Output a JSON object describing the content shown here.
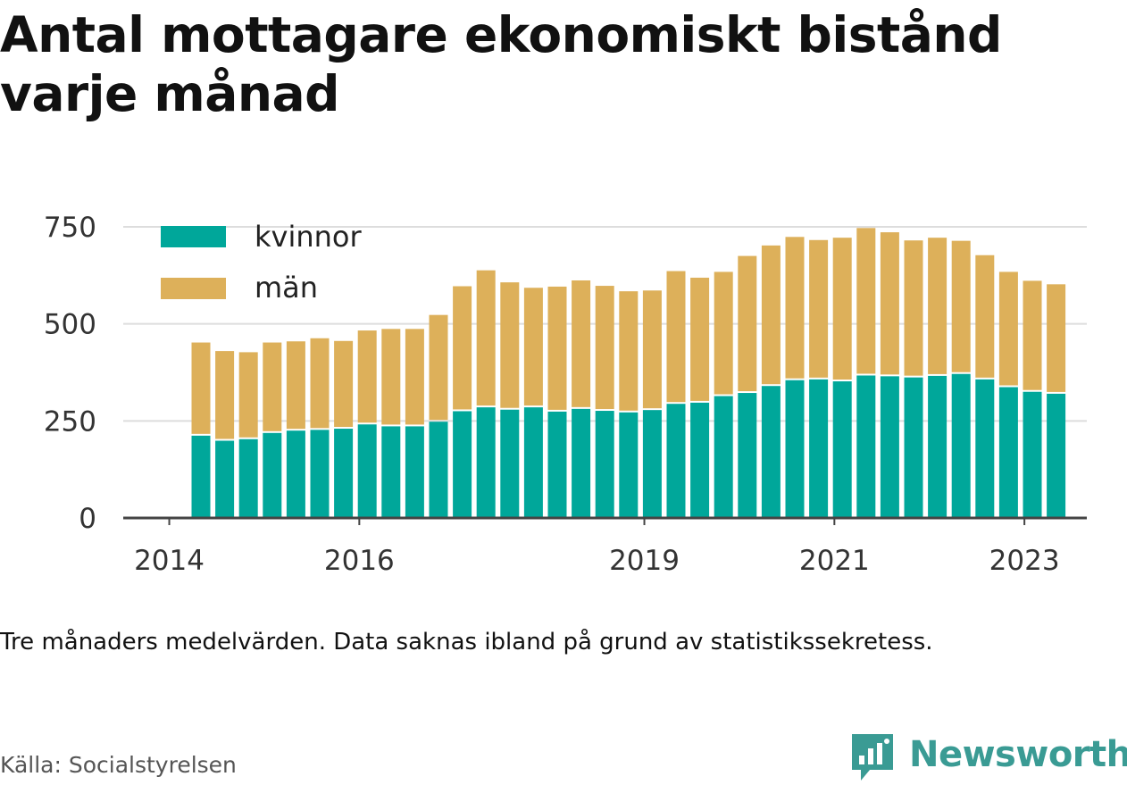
{
  "title": "Antal mottagare ekonomiskt bistånd varje månad",
  "note": "Tre månaders medelvärden. Data saknas ibland på grund av statistikssekretess.",
  "source": "Källa: Socialstyrelsen",
  "brand": "Newsworthy",
  "colors": {
    "kvinnor": "#00a79a",
    "man": "#ddb05a",
    "axis": "#444444",
    "grid": "#dddddd",
    "brand": "#3a9b94"
  },
  "chart_data": {
    "type": "bar",
    "stacked": true,
    "x": [
      "2014-05",
      "2014-08",
      "2014-11",
      "2015-02",
      "2015-05",
      "2015-08",
      "2015-11",
      "2016-02",
      "2016-05",
      "2016-08",
      "2016-11",
      "2017-02",
      "2017-05",
      "2017-08",
      "2017-11",
      "2018-02",
      "2018-05",
      "2018-08",
      "2018-11",
      "2019-02",
      "2019-05",
      "2019-08",
      "2019-11",
      "2020-02",
      "2020-05",
      "2020-08",
      "2020-11",
      "2021-02",
      "2021-05",
      "2021-08",
      "2021-11",
      "2022-02",
      "2022-05",
      "2022-08",
      "2022-11",
      "2023-02",
      "2023-05"
    ],
    "series": [
      {
        "name": "kvinnor",
        "values": [
          212,
          199,
          203,
          219,
          225,
          227,
          230,
          241,
          236,
          236,
          248,
          275,
          285,
          279,
          285,
          274,
          281,
          276,
          272,
          278,
          294,
          297,
          314,
          322,
          340,
          355,
          357,
          352,
          367,
          365,
          362,
          366,
          371,
          357,
          337,
          325,
          320
        ]
      },
      {
        "name": "män",
        "values": [
          240,
          231,
          224,
          233,
          230,
          236,
          226,
          242,
          251,
          251,
          275,
          322,
          353,
          328,
          308,
          322,
          331,
          322,
          312,
          308,
          342,
          322,
          320,
          353,
          362,
          369,
          359,
          370,
          380,
          371,
          353,
          356,
          343,
          320,
          297,
          286,
          282
        ]
      }
    ],
    "xticks": [
      "2014",
      "2016",
      "2019",
      "2021",
      "2023"
    ],
    "yticks": [
      0,
      250,
      500,
      750
    ],
    "ylim": [
      0,
      800
    ],
    "grid": true,
    "legend": "top-left"
  }
}
